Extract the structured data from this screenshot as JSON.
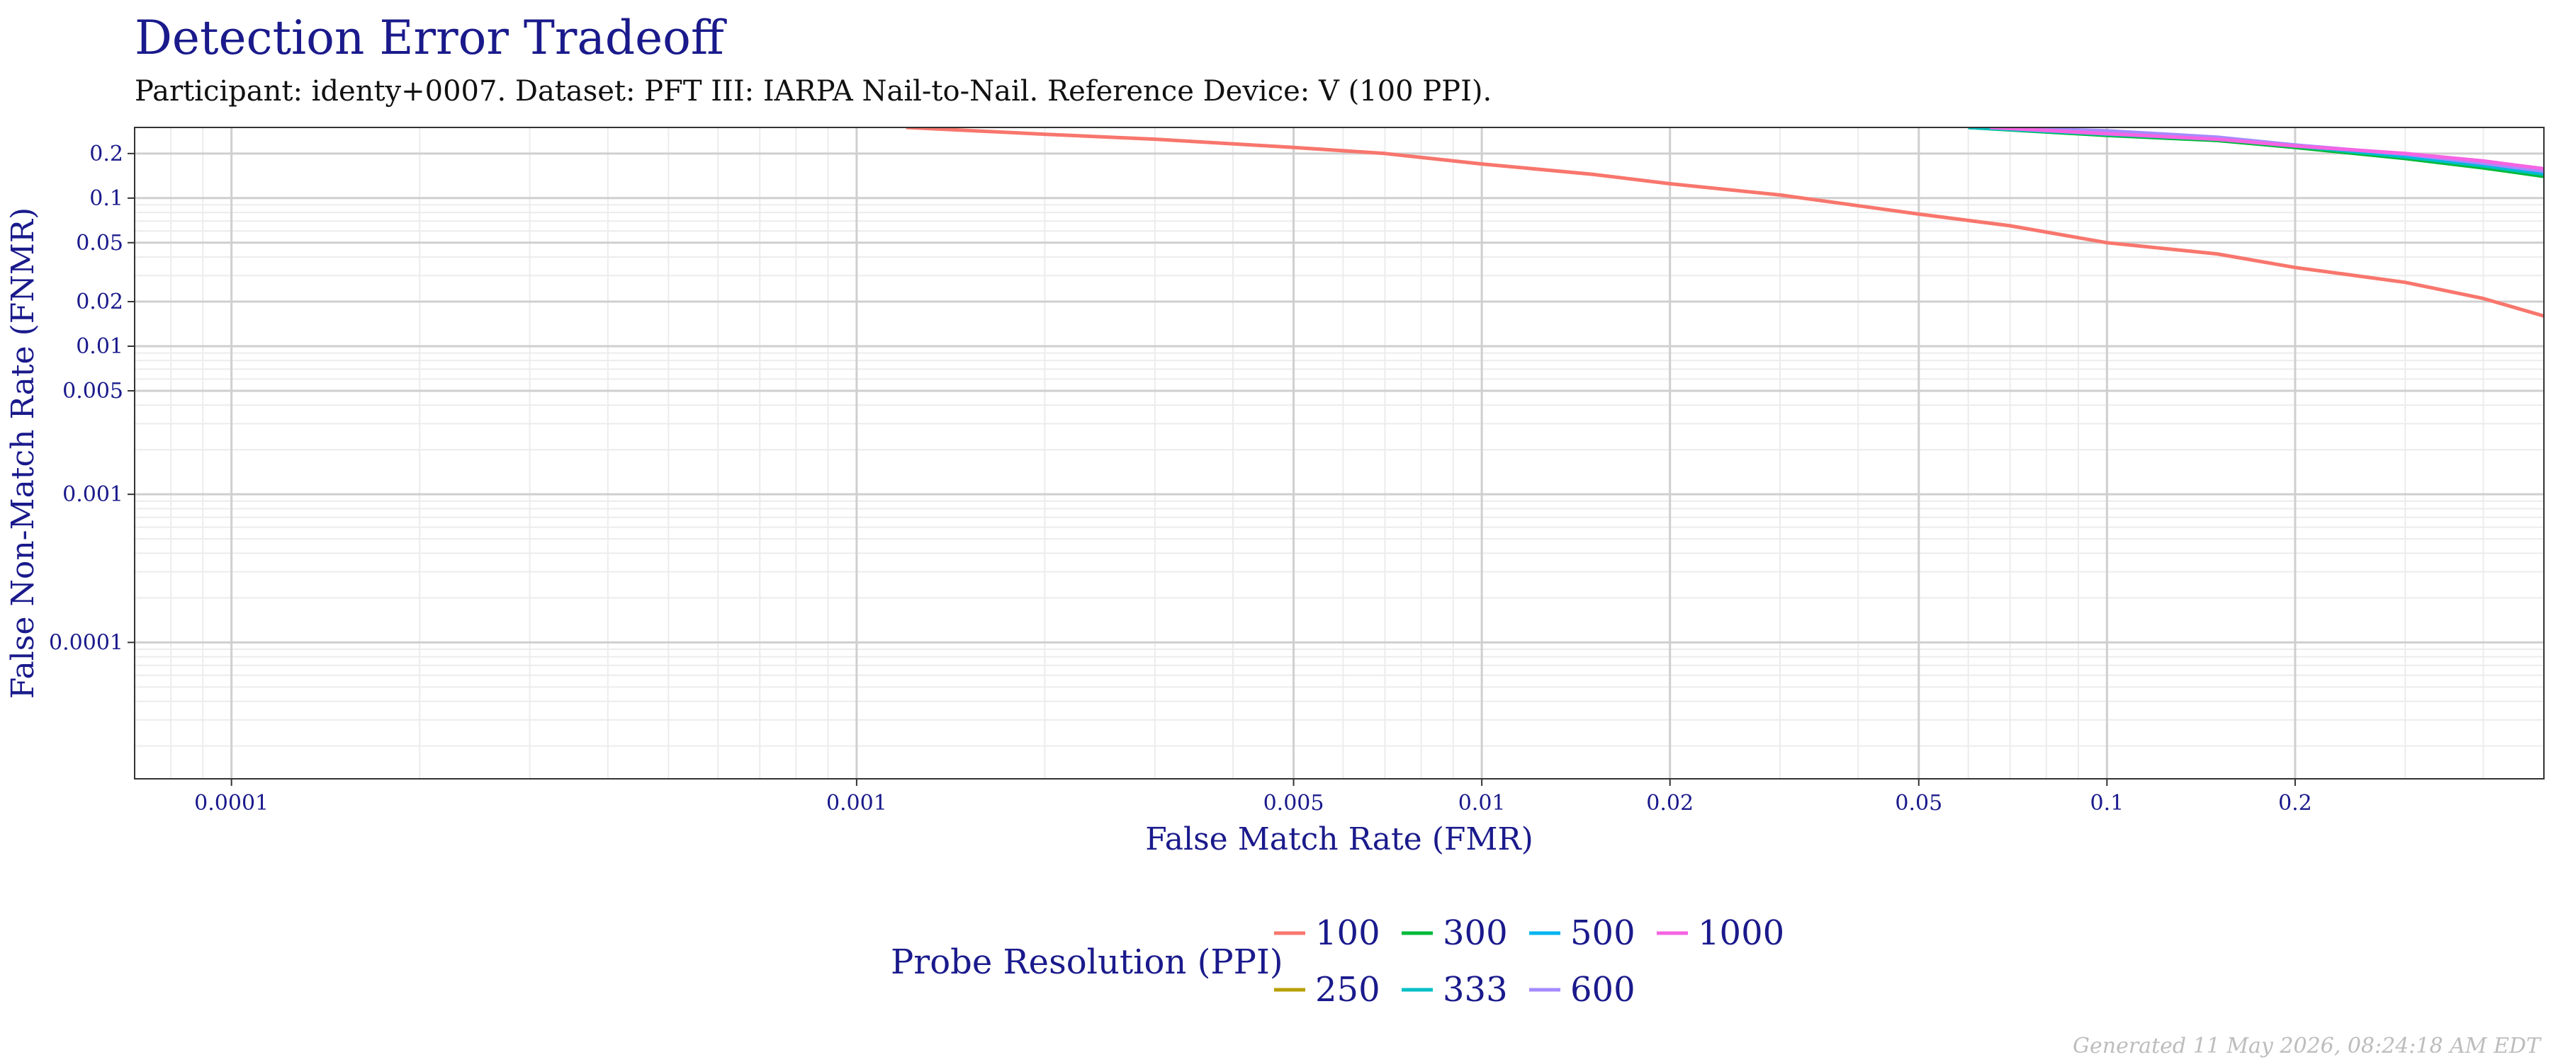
{
  "title": "Detection Error Tradeoff",
  "subtitle": "Participant: identy+0007. Dataset: PFT III: IARPA Nail-to-Nail. Reference Device: V (100 PPI).",
  "footer": "Generated 11 May 2026, 08:24:18 AM EDT",
  "chart_data": {
    "type": "line",
    "xlabel": "False Match Rate (FMR)",
    "ylabel": "False Non-Match Rate (FNMR)",
    "x_scale": "log",
    "y_scale": "log",
    "xlim": [
      7e-05,
      0.5
    ],
    "ylim": [
      1.2e-05,
      0.3
    ],
    "x_ticks": [
      0.0001,
      0.001,
      0.005,
      0.01,
      0.02,
      0.05,
      0.1,
      0.2
    ],
    "x_tick_labels": [
      "0.0001",
      "0.001",
      "0.005",
      "0.01",
      "0.02",
      "0.05",
      "0.1",
      "0.2"
    ],
    "y_ticks": [
      0.2,
      0.1,
      0.05,
      0.02,
      0.01,
      0.005,
      0.001,
      0.0001
    ],
    "y_tick_labels": [
      "0.2",
      "0.1",
      "0.05",
      "0.02",
      "0.01",
      "0.005",
      "0.001",
      "0.0001"
    ],
    "grid": true,
    "legend_title": "Probe Resolution (PPI)",
    "legend_position": "bottom",
    "series": [
      {
        "name": "100",
        "color": "#F8766D",
        "points": [
          [
            0.0012,
            0.3
          ],
          [
            0.002,
            0.27
          ],
          [
            0.003,
            0.25
          ],
          [
            0.005,
            0.22
          ],
          [
            0.007,
            0.2
          ],
          [
            0.01,
            0.17
          ],
          [
            0.015,
            0.145
          ],
          [
            0.02,
            0.125
          ],
          [
            0.03,
            0.105
          ],
          [
            0.05,
            0.078
          ],
          [
            0.07,
            0.065
          ],
          [
            0.1,
            0.05
          ],
          [
            0.15,
            0.042
          ],
          [
            0.2,
            0.034
          ],
          [
            0.3,
            0.027
          ],
          [
            0.4,
            0.021
          ],
          [
            0.5,
            0.016
          ]
        ]
      },
      {
        "name": "250",
        "color": "#B79F00",
        "points": [
          [
            0.06,
            0.3
          ],
          [
            0.1,
            0.27
          ],
          [
            0.15,
            0.25
          ],
          [
            0.2,
            0.225
          ],
          [
            0.3,
            0.19
          ],
          [
            0.4,
            0.165
          ],
          [
            0.5,
            0.145
          ]
        ]
      },
      {
        "name": "300",
        "color": "#00BA38",
        "points": [
          [
            0.06,
            0.3
          ],
          [
            0.1,
            0.265
          ],
          [
            0.15,
            0.245
          ],
          [
            0.2,
            0.22
          ],
          [
            0.3,
            0.185
          ],
          [
            0.4,
            0.16
          ],
          [
            0.5,
            0.14
          ]
        ]
      },
      {
        "name": "333",
        "color": "#00BFC4",
        "points": [
          [
            0.06,
            0.3
          ],
          [
            0.1,
            0.27
          ],
          [
            0.15,
            0.25
          ],
          [
            0.2,
            0.225
          ],
          [
            0.3,
            0.19
          ],
          [
            0.4,
            0.165
          ],
          [
            0.5,
            0.145
          ]
        ]
      },
      {
        "name": "500",
        "color": "#00B4F0",
        "points": [
          [
            0.065,
            0.3
          ],
          [
            0.1,
            0.275
          ],
          [
            0.15,
            0.255
          ],
          [
            0.2,
            0.228
          ],
          [
            0.3,
            0.195
          ],
          [
            0.4,
            0.17
          ],
          [
            0.5,
            0.15
          ]
        ]
      },
      {
        "name": "600",
        "color": "#A58AFF",
        "points": [
          [
            0.065,
            0.3
          ],
          [
            0.1,
            0.285
          ],
          [
            0.15,
            0.258
          ],
          [
            0.2,
            0.228
          ],
          [
            0.3,
            0.198
          ],
          [
            0.4,
            0.172
          ],
          [
            0.5,
            0.152
          ]
        ]
      },
      {
        "name": "1000",
        "color": "#F564E3",
        "points": [
          [
            0.065,
            0.3
          ],
          [
            0.1,
            0.272
          ],
          [
            0.15,
            0.25
          ],
          [
            0.2,
            0.225
          ],
          [
            0.3,
            0.2
          ],
          [
            0.4,
            0.178
          ],
          [
            0.5,
            0.158
          ]
        ]
      }
    ]
  }
}
